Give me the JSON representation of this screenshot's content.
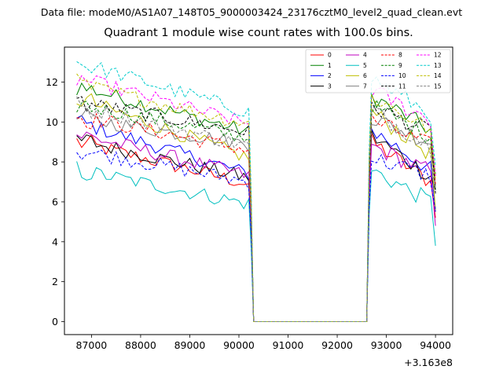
{
  "chart_data": {
    "type": "line",
    "suptitle": "Data file: modeM0/AS1A07_148T05_9000003424_23176cztM0_level2_quad_clean.evt",
    "title": "Quadrant 1 module wise count rates with 100.0s bins.",
    "xlabel": "",
    "ylabel": "",
    "x_offset_label": "+3.163e8",
    "xlim": [
      86450,
      94350
    ],
    "ylim": [
      -0.65,
      13.75
    ],
    "xticks": [
      87000,
      88000,
      89000,
      90000,
      91000,
      92000,
      93000,
      94000
    ],
    "xtick_labels": [
      "87000",
      "88000",
      "89000",
      "90000",
      "91000",
      "92000",
      "93000",
      "94000"
    ],
    "yticks": [
      0,
      2,
      4,
      6,
      8,
      10,
      12
    ],
    "ytick_labels": [
      "0",
      "2",
      "4",
      "6",
      "8",
      "10",
      "12"
    ],
    "legend_position": "upper right",
    "segments": {
      "seg1_x": [
        86700,
        90200
      ],
      "drop_x": [
        90300,
        90300
      ],
      "gap_x": [
        90300,
        92600
      ],
      "seg2_x": [
        92700,
        94000
      ],
      "step": 100
    },
    "series": [
      {
        "name": "0",
        "color": "#ff0000",
        "dash": "solid",
        "start": 9.0,
        "end": 6.9,
        "seg2_start": 9.0,
        "seg2_end": 7.0,
        "seg2_last": 5.2
      },
      {
        "name": "1",
        "color": "#008000",
        "dash": "solid",
        "start": 11.8,
        "end": 9.5,
        "seg2_start": 11.3,
        "seg2_end": 9.6,
        "seg2_last": 6.6
      },
      {
        "name": "2",
        "color": "#0000ff",
        "dash": "solid",
        "start": 10.0,
        "end": 7.4,
        "seg2_start": 9.6,
        "seg2_end": 7.6,
        "seg2_last": 5.5
      },
      {
        "name": "3",
        "color": "#000000",
        "dash": "solid",
        "start": 9.1,
        "end": 7.2,
        "seg2_start": 9.3,
        "seg2_end": 7.3,
        "seg2_last": 6.6
      },
      {
        "name": "4",
        "color": "#bf00bf",
        "dash": "solid",
        "start": 9.4,
        "end": 7.3,
        "seg2_start": 8.8,
        "seg2_end": 7.5,
        "seg2_last": 4.8
      },
      {
        "name": "5",
        "color": "#00bfbf",
        "dash": "solid",
        "start": 7.6,
        "end": 5.9,
        "seg2_start": 7.6,
        "seg2_end": 6.0,
        "seg2_last": 3.8
      },
      {
        "name": "6",
        "color": "#bfbf00",
        "dash": "solid",
        "start": 11.2,
        "end": 8.2,
        "seg2_start": 10.5,
        "seg2_end": 8.4,
        "seg2_last": 5.6
      },
      {
        "name": "7",
        "color": "#808080",
        "dash": "solid",
        "start": 10.2,
        "end": 8.9,
        "seg2_start": 10.2,
        "seg2_end": 9.0,
        "seg2_last": 6.8
      },
      {
        "name": "8",
        "color": "#ff0000",
        "dash": "dashed",
        "start": 10.3,
        "end": 8.6,
        "seg2_start": 10.1,
        "seg2_end": 8.8,
        "seg2_last": 6.9
      },
      {
        "name": "9",
        "color": "#008000",
        "dash": "dashed",
        "start": 10.9,
        "end": 9.2,
        "seg2_start": 10.8,
        "seg2_end": 9.3,
        "seg2_last": 7.4
      },
      {
        "name": "10",
        "color": "#0000ff",
        "dash": "dashed",
        "start": 8.6,
        "end": 7.0,
        "seg2_start": 8.2,
        "seg2_end": 7.3,
        "seg2_last": 5.6
      },
      {
        "name": "11",
        "color": "#000000",
        "dash": "dashed",
        "start": 11.0,
        "end": 9.5,
        "seg2_start": 10.8,
        "seg2_end": 9.5,
        "seg2_last": 6.4
      },
      {
        "name": "12",
        "color": "#ff00ff",
        "dash": "dashed",
        "start": 12.2,
        "end": 9.9,
        "seg2_start": 11.6,
        "seg2_end": 10.1,
        "seg2_last": 7.3
      },
      {
        "name": "13",
        "color": "#00cccc",
        "dash": "dashed",
        "start": 13.0,
        "end": 10.5,
        "seg2_start": 12.2,
        "seg2_end": 10.4,
        "seg2_last": 7.8
      },
      {
        "name": "14",
        "color": "#bfbf00",
        "dash": "dashed",
        "start": 11.9,
        "end": 9.9,
        "seg2_start": 11.3,
        "seg2_end": 9.6,
        "seg2_last": 7.1
      },
      {
        "name": "15",
        "color": "#808080",
        "dash": "dashed",
        "start": 10.8,
        "end": 8.8,
        "seg2_start": 10.6,
        "seg2_end": 8.8,
        "seg2_last": 6.6
      }
    ]
  }
}
